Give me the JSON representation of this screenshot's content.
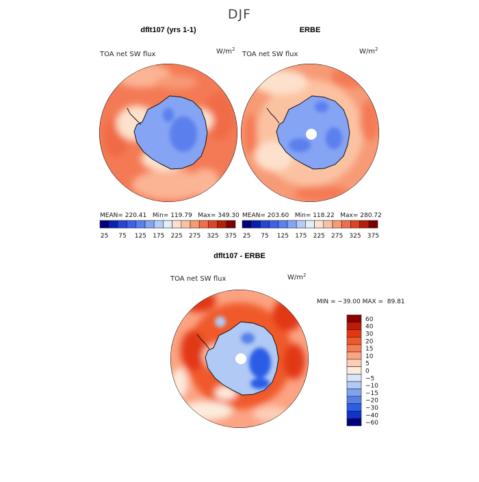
{
  "chart_data": {
    "type": "heatmap",
    "title": "DJF",
    "panels": [
      {
        "title": "dflt107 (yrs 1-1)",
        "variable": "TOA net SW flux",
        "units": "W/m",
        "units_exp": "2",
        "stats": "MEAN= 220.41   Min= 119.79   Max= 349.30",
        "colorbar_labels": [
          "25",
          "75",
          "125",
          "175",
          "225",
          "275",
          "325",
          "375"
        ]
      },
      {
        "title": "ERBE",
        "variable": "TOA net SW flux",
        "units": "W/m",
        "units_exp": "2",
        "stats": "MEAN= 203.60   Min= 118.22   Max= 280.72",
        "colorbar_labels": [
          "25",
          "75",
          "125",
          "175",
          "225",
          "275",
          "325",
          "375"
        ]
      },
      {
        "title": "dflt107 - ERBE",
        "variable": "TOA net SW flux",
        "units": "W/m",
        "units_exp": "2",
        "stats": "MIN = −39.00 MAX =  89.81",
        "colorbar_labels": [
          "60",
          "40",
          "30",
          "20",
          "15",
          "10",
          "5",
          "0",
          "−5",
          "−10",
          "−15",
          "−20",
          "−30",
          "−40",
          "−60"
        ]
      }
    ],
    "abs_levels": [
      25,
      50,
      75,
      100,
      125,
      150,
      175,
      200,
      225,
      250,
      275,
      300,
      325,
      350,
      375
    ],
    "diff_levels": [
      60,
      40,
      30,
      20,
      15,
      10,
      5,
      0,
      -5,
      -10,
      -15,
      -20,
      -30,
      -40,
      -60
    ],
    "colors": {
      "abs_scale": [
        "#00007f",
        "#0a1fb0",
        "#2446d8",
        "#3d63e4",
        "#5b7fee",
        "#85a4f4",
        "#b4ccfa",
        "#e3eefc",
        "#fde1cc",
        "#fbc2a2",
        "#f79a76",
        "#f16e4c",
        "#dc4425",
        "#b41e0d",
        "#7d0000"
      ],
      "diff_scale": [
        "#8b0000",
        "#c01a05",
        "#e23812",
        "#f05a2a",
        "#f67d52",
        "#fba383",
        "#fdcdb5",
        "#fcebdd",
        "#d7e5fa",
        "#b0c9f5",
        "#7fa3ee",
        "#5480e8",
        "#2b5de6",
        "#1033c9",
        "#00007f"
      ]
    }
  }
}
